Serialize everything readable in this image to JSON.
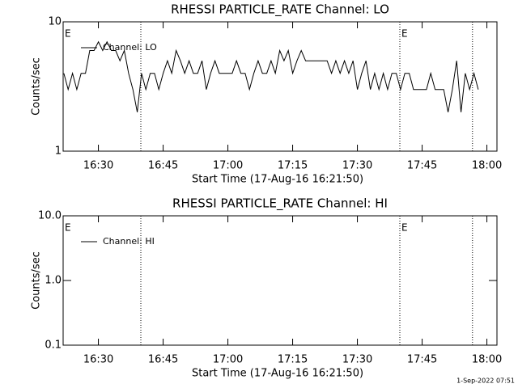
{
  "chart_data": [
    {
      "type": "line",
      "title": "RHESSI PARTICLE_RATE Channel: LO",
      "xlabel": "Start Time (17-Aug-16 16:21:50)",
      "ylabel": "Counts/sec",
      "log_y": true,
      "ylim": [
        1,
        10
      ],
      "yticks": [
        1,
        10
      ],
      "xlim": [
        "16:21:50",
        "18:02:20"
      ],
      "xticks": [
        "16:30",
        "16:45",
        "17:00",
        "17:15",
        "17:30",
        "17:45",
        "18:00"
      ],
      "event_lines": [
        "16:39:50",
        "17:39:50",
        "17:56:40"
      ],
      "event_marks": [
        {
          "x": "16:21:50",
          "label": "E"
        },
        {
          "x": "17:39:50",
          "label": "E"
        }
      ],
      "x": [
        "16:22",
        "16:23",
        "16:24",
        "16:25",
        "16:26",
        "16:27",
        "16:28",
        "16:29",
        "16:30",
        "16:31",
        "16:32",
        "16:33",
        "16:34",
        "16:35",
        "16:36",
        "16:37",
        "16:38",
        "16:39",
        "16:40",
        "16:41",
        "16:42",
        "16:43",
        "16:44",
        "16:45",
        "16:46",
        "16:47",
        "16:48",
        "16:49",
        "16:50",
        "16:51",
        "16:52",
        "16:53",
        "16:54",
        "16:55",
        "16:56",
        "16:57",
        "16:58",
        "16:59",
        "17:00",
        "17:01",
        "17:02",
        "17:03",
        "17:04",
        "17:05",
        "17:06",
        "17:07",
        "17:08",
        "17:09",
        "17:10",
        "17:11",
        "17:12",
        "17:13",
        "17:14",
        "17:15",
        "17:16",
        "17:17",
        "17:18",
        "17:19",
        "17:20",
        "17:21",
        "17:22",
        "17:23",
        "17:24",
        "17:25",
        "17:26",
        "17:27",
        "17:28",
        "17:29",
        "17:30",
        "17:31",
        "17:32",
        "17:33",
        "17:34",
        "17:35",
        "17:36",
        "17:37",
        "17:38",
        "17:39",
        "17:40",
        "17:41",
        "17:42",
        "17:43",
        "17:44",
        "17:45",
        "17:46",
        "17:47",
        "17:48",
        "17:49",
        "17:50",
        "17:51",
        "17:52",
        "17:53",
        "17:54",
        "17:55",
        "17:56",
        "17:57",
        "17:58"
      ],
      "series": [
        {
          "name": "Channel: LO",
          "color": "#000000",
          "values": [
            4,
            3,
            4,
            3,
            4,
            4,
            6,
            6,
            7,
            6,
            7,
            6,
            6,
            5,
            6,
            4,
            3,
            2,
            4,
            3,
            4,
            4,
            3,
            4,
            5,
            4,
            6,
            5,
            4,
            5,
            4,
            4,
            5,
            3,
            4,
            5,
            4,
            4,
            4,
            4,
            5,
            4,
            4,
            3,
            4,
            5,
            4,
            4,
            5,
            4,
            6,
            5,
            6,
            4,
            5,
            6,
            5,
            5,
            5,
            5,
            5,
            5,
            4,
            5,
            4,
            5,
            4,
            5,
            3,
            4,
            5,
            3,
            4,
            3,
            4,
            3,
            4,
            4,
            3,
            4,
            4,
            3,
            3,
            3,
            3,
            4,
            3,
            3,
            3,
            2,
            3,
            5,
            2,
            4,
            3,
            4,
            3
          ]
        }
      ]
    },
    {
      "type": "line",
      "title": "RHESSI PARTICLE_RATE Channel: HI",
      "xlabel": "Start Time (17-Aug-16 16:21:50)",
      "ylabel": "Counts/sec",
      "log_y": true,
      "ylim": [
        0.1,
        10
      ],
      "yticks": [
        {
          "value": 0.1,
          "label": "0.1"
        },
        {
          "value": 1,
          "label": "1.0"
        },
        {
          "value": 10,
          "label": "10.0"
        }
      ],
      "xlim": [
        "16:21:50",
        "18:02:20"
      ],
      "xticks": [
        "16:30",
        "16:45",
        "17:00",
        "17:15",
        "17:30",
        "17:45",
        "18:00"
      ],
      "event_lines": [
        "16:39:50",
        "17:39:50",
        "17:56:40"
      ],
      "event_marks": [
        {
          "x": "16:21:50",
          "label": "E"
        },
        {
          "x": "17:39:50",
          "label": "E"
        }
      ],
      "x": [],
      "series": [
        {
          "name": "Channel: HI",
          "color": "#000000",
          "values": []
        }
      ]
    }
  ],
  "footer": "1-Sep-2022 07:51"
}
